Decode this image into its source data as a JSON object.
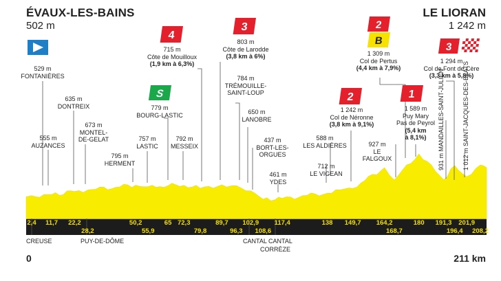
{
  "start": {
    "name": "ÉVAUX-LES-BAINS",
    "altitude": "502 m",
    "km": "0"
  },
  "finish": {
    "name": "LE LIORAN",
    "altitude": "1 242 m",
    "km": "211 km"
  },
  "colors": {
    "profile": "#f8ec00",
    "band": "#1c1c1c",
    "km_text": "#ffffff",
    "km_text_alt": "#f6e100",
    "cat_red": "#e3202b",
    "sprint_green": "#1aa84a",
    "bonus_yellow": "#f6e100",
    "start_flag": "#1f7fc6"
  },
  "icons": {
    "start": "start-flag-icon",
    "finish": "checkered-finish-icon",
    "sprint": "sprint-icon",
    "bonus": "bonus-icon"
  },
  "badges": {
    "mouilloux": "4",
    "larodde": "3",
    "neronne": "2",
    "pertus_cat": "2",
    "pertus_bonus": "B",
    "peyrol": "1",
    "fontdecere": "3",
    "sprint": "S"
  },
  "waypoints": {
    "fontanieres": [
      "529 m",
      "FONTANIÈRES"
    ],
    "dontreix": [
      "635 m",
      "DONTREIX"
    ],
    "auzances": [
      "555 m",
      "AUZANCES"
    ],
    "montel": [
      "673 m",
      "MONTEL-",
      "DE-GELAT"
    ],
    "herment": [
      "795 m",
      "HERMENT"
    ],
    "lastic": [
      "757 m",
      "LASTIC"
    ],
    "bourg": [
      "779 m",
      "BOURG-LASTIC"
    ],
    "mouilloux": [
      "715 m",
      "Côte de Mouilloux",
      "(1,9 km à 6,3%)"
    ],
    "messeix": [
      "792 m",
      "MESSEIX"
    ],
    "larodde": [
      "803 m",
      "Côte de Larodde",
      "(3,8 km à 6%)"
    ],
    "tremouille": [
      "784 m",
      "TRÉMOUILLE-",
      "SAINT-LOUP"
    ],
    "lanobre": [
      "650 m",
      "LANOBRE"
    ],
    "bort": [
      "437 m",
      "BORT-LES-",
      "ORGUES"
    ],
    "ydes": [
      "461 m",
      "YDES"
    ],
    "neronne": [
      "1 242 m",
      "Col de Néronne",
      "(3,8 km à 9,1%)"
    ],
    "aldieres": [
      "588 m",
      "LES ALDIÈRES"
    ],
    "vigean": [
      "712 m",
      "LE VIGEAN"
    ],
    "falgoux": [
      "927 m",
      "LE",
      "FALGOUX"
    ],
    "pertus": [
      "1 309 m",
      "Col de Pertus",
      "(4,4 km à 7,9%)"
    ],
    "peyrol": [
      "1 589 m",
      "Puy Mary",
      "Pas de Peyrol",
      "(5,4 km",
      "à 8,1%)"
    ],
    "fontdecere": [
      "1 294 m",
      "Col de Font de Cère",
      "(3,3 km à 5,8%)"
    ],
    "mandailles": "931 m MANDAILLES-SAINT-JULIEN",
    "jacques": "1 012 m SAINT-JACQUES-DES-BLATS"
  },
  "km_marks": {
    "top": [
      "2,4",
      "11,7",
      "22,2",
      "50,2",
      "65",
      "72,3",
      "89,7",
      "102,9",
      "117,4",
      "138",
      "149,7",
      "164,2",
      "180",
      "191,3",
      "201,9"
    ],
    "bottom": [
      "28,2",
      "55,9",
      "79,8",
      "96,3",
      "108,6",
      "168,7",
      "196,4",
      "208,2"
    ]
  },
  "departments": [
    "CREUSE",
    "PUY-DE-DÔME",
    "CANTAL CANTAL",
    "CORRÈZE"
  ],
  "chart_data": {
    "type": "area",
    "x_unit": "km",
    "y_unit": "m",
    "xlim": [
      0,
      211
    ],
    "x": [
      0,
      2.4,
      11.7,
      22.2,
      28.2,
      50.2,
      55.9,
      65,
      72.3,
      79.8,
      89.7,
      96.3,
      102.9,
      108.6,
      117.4,
      138,
      149.7,
      164.2,
      168.7,
      180,
      191.3,
      196.4,
      201.9,
      208.2,
      211
    ],
    "y": [
      502,
      529,
      555,
      635,
      673,
      795,
      757,
      779,
      792,
      715,
      803,
      784,
      650,
      437,
      461,
      588,
      712,
      1242,
      927,
      1589,
      931,
      1294,
      1012,
      1309,
      1242
    ]
  }
}
